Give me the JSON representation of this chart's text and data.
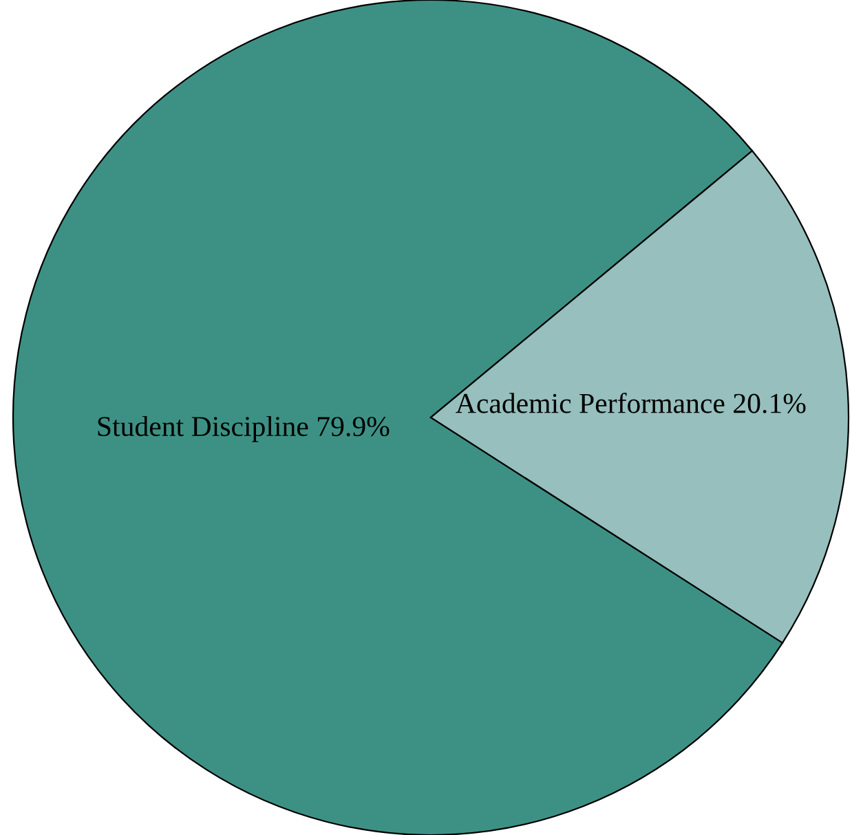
{
  "chart_data": {
    "type": "pie",
    "categories": [
      "Student Discipline",
      "Academic Performance"
    ],
    "values": [
      79.9,
      20.1
    ],
    "value_labels": [
      "79.9%",
      "20.1%"
    ],
    "colors": [
      "#3d9184",
      "#96bfbd"
    ],
    "legend": false
  }
}
